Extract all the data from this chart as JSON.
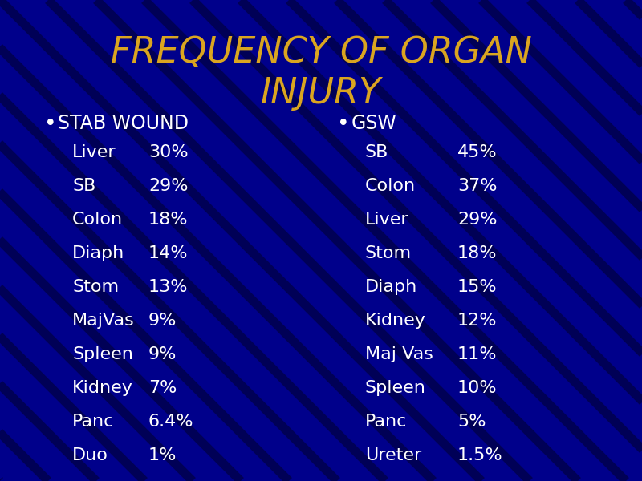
{
  "title_line1": "FREQUENCY OF ORGAN",
  "title_line2": "INJURY",
  "title_color": "#DAA520",
  "title_fontsize": 32,
  "background_color": "#00008B",
  "text_color": "#FFFFFF",
  "bullet_color": "#FFFFFF",
  "col1_header": "STAB WOUND",
  "col1_items": [
    [
      "Liver",
      "30%"
    ],
    [
      "SB",
      "29%"
    ],
    [
      "Colon",
      "18%"
    ],
    [
      "Diaph",
      "14%"
    ],
    [
      "Stom",
      "13%"
    ],
    [
      "MajVas",
      "9%"
    ],
    [
      "Spleen",
      "9%"
    ],
    [
      "Kidney",
      "7%"
    ],
    [
      "Panc",
      "6.4%"
    ],
    [
      "Duo",
      "1%"
    ]
  ],
  "col2_header": "GSW",
  "col2_items": [
    [
      "SB",
      "45%"
    ],
    [
      "Colon",
      "37%"
    ],
    [
      "Liver",
      "29%"
    ],
    [
      "Stom",
      "18%"
    ],
    [
      "Diaph",
      "15%"
    ],
    [
      "Kidney",
      "12%"
    ],
    [
      "Maj Vas",
      "11%"
    ],
    [
      "Spleen",
      "10%"
    ],
    [
      "Panc",
      "5%"
    ],
    [
      "Ureter",
      "1.5%"
    ]
  ],
  "body_fontsize": 16,
  "header_fontsize": 17,
  "stripe_color": "#000033",
  "stripe_alpha": 0.6
}
